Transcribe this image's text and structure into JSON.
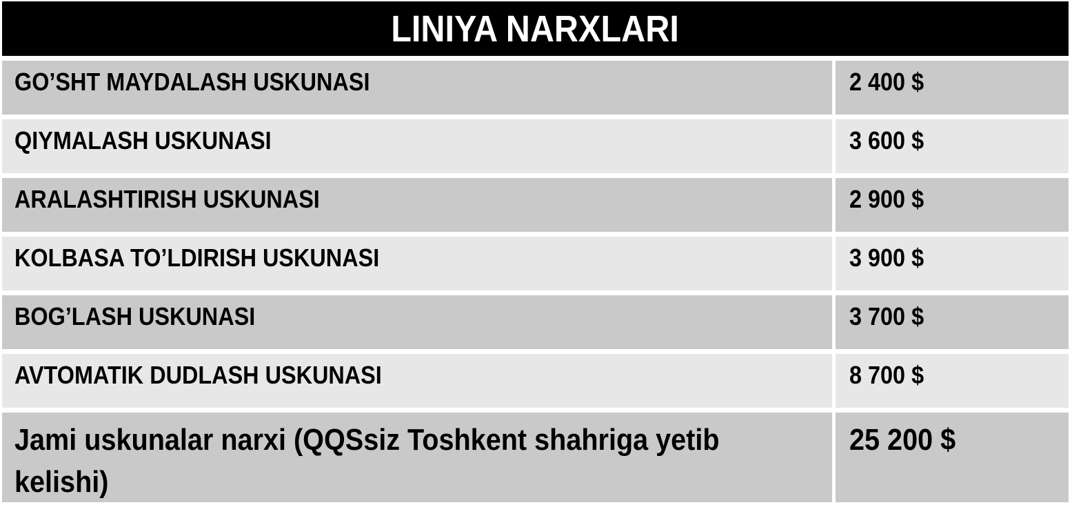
{
  "title": "LINIYA NARXLARI",
  "table": {
    "column_semantics": [
      "equipment name",
      "price"
    ],
    "rows": [
      {
        "label": "GO’SHT MAYDALASH USKUNASI",
        "price": "2 400 $"
      },
      {
        "label": "QIYMALASH USKUNASI",
        "price": "3 600 $"
      },
      {
        "label": "ARALASHTIRISH USKUNASI",
        "price": "2 900 $"
      },
      {
        "label": "KOLBASA TO’LDIRISH USKUNASI",
        "price": "3 900 $"
      },
      {
        "label": "BOG’LASH USKUNASI",
        "price": "3 700 $"
      },
      {
        "label": "AVTOMATIK DUDLASH USKUNASI",
        "price": "8 700 $"
      },
      {
        "label": "Jami uskunalar narxi (QQSsiz Toshkent shahriga yetib\nkelishi)",
        "price": "25 200 $"
      }
    ],
    "colors": {
      "header_bg": "#000000",
      "header_text": "#FFFFFF",
      "row_dark": "#C9C9C9",
      "row_light": "#E7E7E7",
      "body_text": "#000000"
    }
  }
}
